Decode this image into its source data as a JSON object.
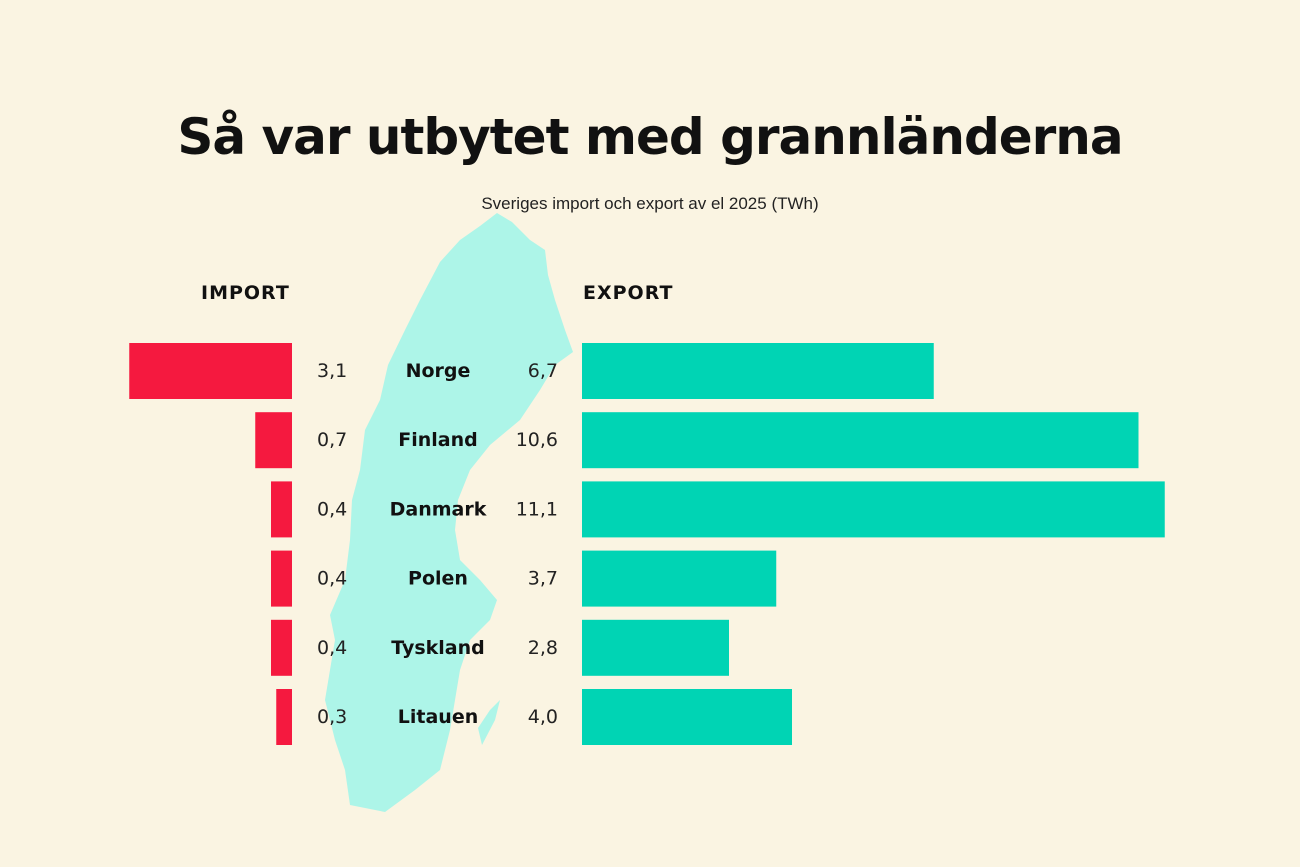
{
  "chart_data": {
    "type": "bar",
    "title": "Så var utbytet med grannländerna",
    "subtitle": "Sveriges import och export av el 2025 (TWh)",
    "categories": [
      "Norge",
      "Finland",
      "Danmark",
      "Polen",
      "Tyskland",
      "Litauen"
    ],
    "series": [
      {
        "name": "IMPORT",
        "values": [
          3.1,
          0.7,
          0.4,
          0.4,
          0.4,
          0.3
        ],
        "labels": [
          "3,1",
          "0,7",
          "0,4",
          "0,4",
          "0,4",
          "0,3"
        ],
        "color": "#F5193F"
      },
      {
        "name": "EXPORT",
        "values": [
          6.7,
          10.6,
          11.1,
          3.7,
          2.8,
          4.0
        ],
        "labels": [
          "6,7",
          "10,6",
          "11,1",
          "3,7",
          "2,8",
          "4,0"
        ],
        "color": "#00D4B4"
      }
    ],
    "map_color": "#ADF5E8",
    "background": "#FAF4E2"
  }
}
